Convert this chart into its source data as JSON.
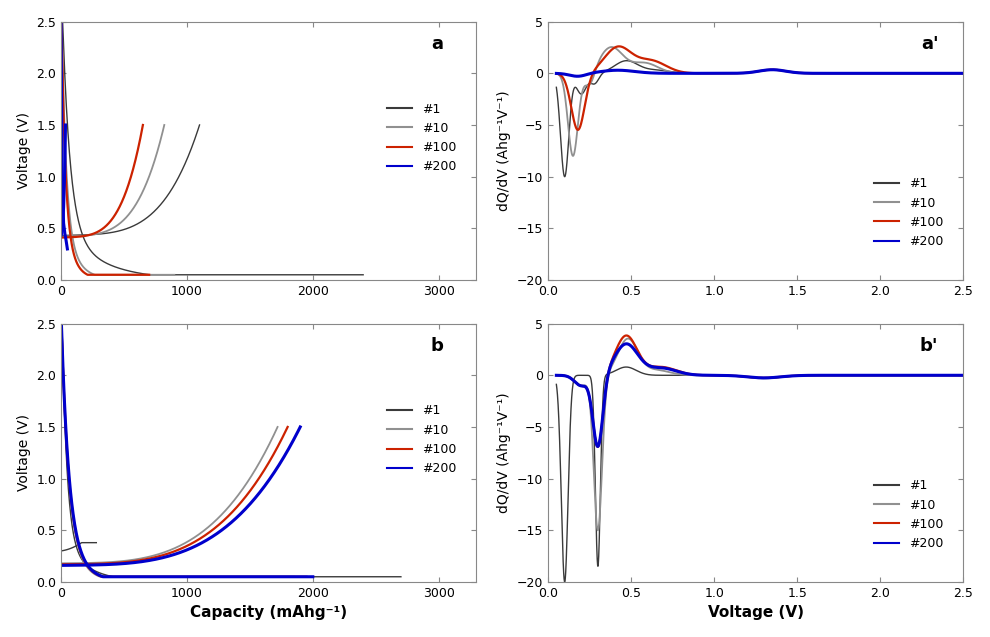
{
  "fig_width": 9.9,
  "fig_height": 6.37,
  "colors": {
    "c1": "#3a3a3a",
    "c10": "#909090",
    "c100": "#cc2200",
    "c200": "#0000cc"
  },
  "ax_a": {
    "xlim": [
      0,
      3300
    ],
    "ylim": [
      0,
      2.5
    ],
    "xticks": [
      0,
      1000,
      2000,
      3000
    ],
    "yticks": [
      0,
      0.5,
      1.0,
      1.5,
      2.0,
      2.5
    ],
    "ylabel": "Voltage (V)"
  },
  "ax_ap": {
    "xlim": [
      0,
      2.5
    ],
    "ylim": [
      -20,
      5
    ],
    "xticks": [
      0,
      0.5,
      1.0,
      1.5,
      2.0,
      2.5
    ],
    "yticks": [
      -20,
      -15,
      -10,
      -5,
      0,
      5
    ],
    "ylabel": "dQ/dV (Ahg⁻¹V⁻¹)"
  },
  "ax_b": {
    "xlim": [
      0,
      3300
    ],
    "ylim": [
      0,
      2.5
    ],
    "xticks": [
      0,
      1000,
      2000,
      3000
    ],
    "yticks": [
      0,
      0.5,
      1.0,
      1.5,
      2.0,
      2.5
    ],
    "xlabel": "Capacity (mAhg⁻¹)",
    "ylabel": "Voltage (V)"
  },
  "ax_bp": {
    "xlim": [
      0,
      2.5
    ],
    "ylim": [
      -20,
      5
    ],
    "xticks": [
      0,
      0.5,
      1.0,
      1.5,
      2.0,
      2.5
    ],
    "yticks": [
      -20,
      -15,
      -10,
      -5,
      0,
      5
    ],
    "xlabel": "Voltage (V)",
    "ylabel": "dQ/dV (Ahg⁻¹V⁻¹)"
  },
  "legend_labels": [
    "#1",
    "#10",
    "#100",
    "#200"
  ]
}
